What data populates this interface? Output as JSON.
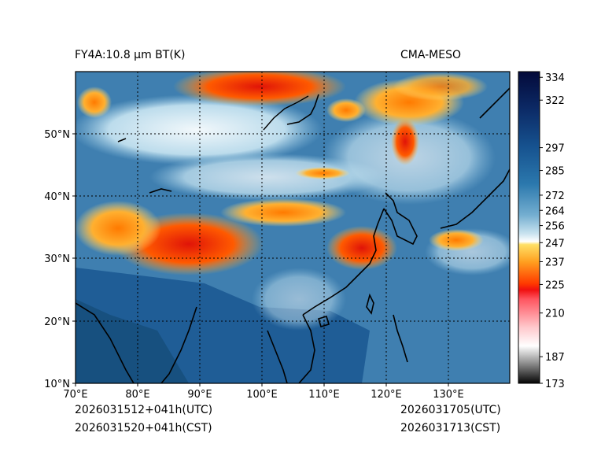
{
  "header": {
    "product_title": "FY4A:10.8 µm BT(K)",
    "model_name": "CMA-MESO"
  },
  "footer": {
    "utc_init": "2026031512+041h(UTC)",
    "cst_init": "2026031520+041h(CST)",
    "utc_valid": "2026031705(UTC)",
    "cst_valid": "2026031713(CST)"
  },
  "map": {
    "lon_range": [
      70,
      140
    ],
    "lat_range": [
      10,
      60
    ],
    "lon_ticks": [
      "70°E",
      "80°E",
      "90°E",
      "100°E",
      "110°E",
      "120°E",
      "130°E"
    ],
    "lat_ticks": [
      "10°N",
      "20°N",
      "30°N",
      "40°N",
      "50°N"
    ]
  },
  "colorbar": {
    "labels": [
      "334",
      "322",
      "297",
      "285",
      "272",
      "264",
      "256",
      "247",
      "237",
      "225",
      "210",
      "187",
      "173"
    ],
    "values": [
      334,
      322,
      297,
      285,
      272,
      264,
      256,
      247,
      237,
      225,
      210,
      187,
      173
    ],
    "range": [
      173,
      337
    ]
  },
  "colors": {
    "ocean": "#3f7fb0",
    "land_warm": "#1f5d96",
    "cloud_cold": "#e8f2f8",
    "convective": "#ff8c00",
    "deep_convective": "#e81a0a"
  }
}
